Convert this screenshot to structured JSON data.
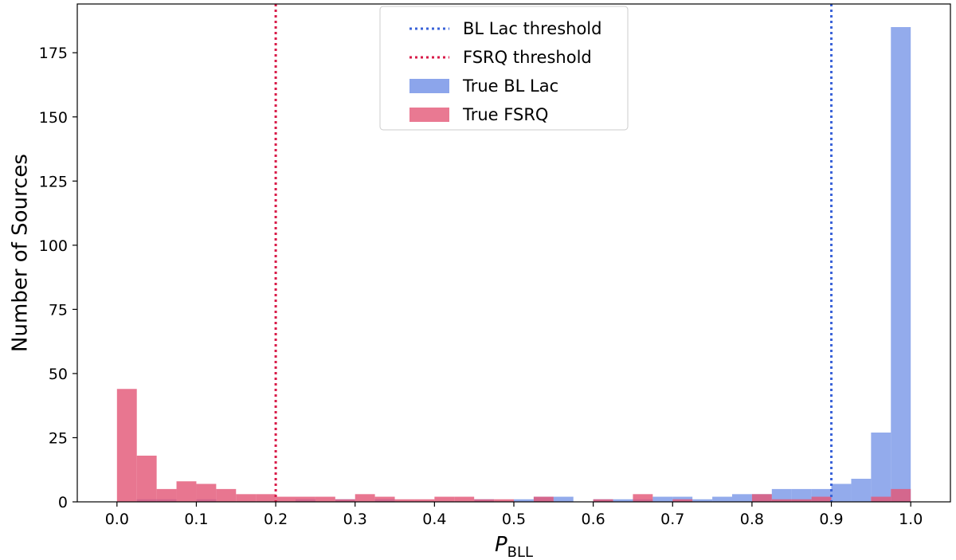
{
  "chart_data": {
    "type": "histogram",
    "xlabel_main": "P",
    "xlabel_sub": "BLL",
    "ylabel": "Number of Sources",
    "xlim": [
      -0.05,
      1.05
    ],
    "ylim": [
      0,
      194
    ],
    "xticks": [
      0.0,
      0.1,
      0.2,
      0.3,
      0.4,
      0.5,
      0.6,
      0.7,
      0.8,
      0.9,
      1.0
    ],
    "xtick_labels": [
      "0.0",
      "0.1",
      "0.2",
      "0.3",
      "0.4",
      "0.5",
      "0.6",
      "0.7",
      "0.8",
      "0.9",
      "1.0"
    ],
    "yticks": [
      0,
      25,
      50,
      75,
      100,
      125,
      150,
      175
    ],
    "ytick_labels": [
      "0",
      "25",
      "50",
      "75",
      "100",
      "125",
      "150",
      "175"
    ],
    "bin_width": 0.025,
    "series": [
      {
        "name": "True BL Lac",
        "color": "#6f8fe6",
        "opacity": 0.75,
        "bins": [
          {
            "x0": 0.025,
            "x1": 0.05,
            "count": 1
          },
          {
            "x0": 0.05,
            "x1": 0.075,
            "count": 1
          },
          {
            "x0": 0.1,
            "x1": 0.125,
            "count": 1
          },
          {
            "x0": 0.225,
            "x1": 0.25,
            "count": 1
          },
          {
            "x0": 0.275,
            "x1": 0.3,
            "count": 1
          },
          {
            "x0": 0.325,
            "x1": 0.35,
            "count": 1
          },
          {
            "x0": 0.45,
            "x1": 0.475,
            "count": 1
          },
          {
            "x0": 0.5,
            "x1": 0.525,
            "count": 1
          },
          {
            "x0": 0.525,
            "x1": 0.55,
            "count": 2
          },
          {
            "x0": 0.55,
            "x1": 0.575,
            "count": 2
          },
          {
            "x0": 0.6,
            "x1": 0.625,
            "count": 1
          },
          {
            "x0": 0.625,
            "x1": 0.65,
            "count": 1
          },
          {
            "x0": 0.65,
            "x1": 0.675,
            "count": 1
          },
          {
            "x0": 0.675,
            "x1": 0.7,
            "count": 2
          },
          {
            "x0": 0.7,
            "x1": 0.725,
            "count": 2
          },
          {
            "x0": 0.725,
            "x1": 0.75,
            "count": 1
          },
          {
            "x0": 0.75,
            "x1": 0.775,
            "count": 2
          },
          {
            "x0": 0.775,
            "x1": 0.8,
            "count": 3
          },
          {
            "x0": 0.8,
            "x1": 0.825,
            "count": 3
          },
          {
            "x0": 0.825,
            "x1": 0.85,
            "count": 5
          },
          {
            "x0": 0.85,
            "x1": 0.875,
            "count": 5
          },
          {
            "x0": 0.875,
            "x1": 0.9,
            "count": 5
          },
          {
            "x0": 0.9,
            "x1": 0.925,
            "count": 7
          },
          {
            "x0": 0.925,
            "x1": 0.95,
            "count": 9
          },
          {
            "x0": 0.95,
            "x1": 0.975,
            "count": 27
          },
          {
            "x0": 0.975,
            "x1": 1.0,
            "count": 185
          }
        ]
      },
      {
        "name": "True FSRQ",
        "color": "#e35877",
        "opacity": 0.82,
        "bins": [
          {
            "x0": 0.0,
            "x1": 0.025,
            "count": 44
          },
          {
            "x0": 0.025,
            "x1": 0.05,
            "count": 18
          },
          {
            "x0": 0.05,
            "x1": 0.075,
            "count": 5
          },
          {
            "x0": 0.075,
            "x1": 0.1,
            "count": 8
          },
          {
            "x0": 0.1,
            "x1": 0.125,
            "count": 7
          },
          {
            "x0": 0.125,
            "x1": 0.15,
            "count": 5
          },
          {
            "x0": 0.15,
            "x1": 0.175,
            "count": 3
          },
          {
            "x0": 0.175,
            "x1": 0.2,
            "count": 3
          },
          {
            "x0": 0.2,
            "x1": 0.225,
            "count": 2
          },
          {
            "x0": 0.225,
            "x1": 0.25,
            "count": 2
          },
          {
            "x0": 0.25,
            "x1": 0.275,
            "count": 2
          },
          {
            "x0": 0.275,
            "x1": 0.3,
            "count": 1
          },
          {
            "x0": 0.3,
            "x1": 0.325,
            "count": 3
          },
          {
            "x0": 0.325,
            "x1": 0.35,
            "count": 2
          },
          {
            "x0": 0.35,
            "x1": 0.375,
            "count": 1
          },
          {
            "x0": 0.375,
            "x1": 0.4,
            "count": 1
          },
          {
            "x0": 0.4,
            "x1": 0.425,
            "count": 2
          },
          {
            "x0": 0.425,
            "x1": 0.45,
            "count": 2
          },
          {
            "x0": 0.45,
            "x1": 0.475,
            "count": 1
          },
          {
            "x0": 0.475,
            "x1": 0.5,
            "count": 1
          },
          {
            "x0": 0.525,
            "x1": 0.55,
            "count": 2
          },
          {
            "x0": 0.6,
            "x1": 0.625,
            "count": 1
          },
          {
            "x0": 0.65,
            "x1": 0.675,
            "count": 3
          },
          {
            "x0": 0.7,
            "x1": 0.725,
            "count": 1
          },
          {
            "x0": 0.8,
            "x1": 0.825,
            "count": 3
          },
          {
            "x0": 0.825,
            "x1": 0.85,
            "count": 1
          },
          {
            "x0": 0.85,
            "x1": 0.875,
            "count": 1
          },
          {
            "x0": 0.875,
            "x1": 0.9,
            "count": 2
          },
          {
            "x0": 0.95,
            "x1": 0.975,
            "count": 2
          },
          {
            "x0": 0.975,
            "x1": 1.0,
            "count": 5
          }
        ]
      }
    ],
    "thresholds": [
      {
        "name": "BL Lac threshold",
        "x": 0.9,
        "color": "#3b63d9",
        "style": "dotted"
      },
      {
        "name": "FSRQ threshold",
        "x": 0.2,
        "color": "#d81b48",
        "style": "dotted"
      }
    ],
    "legend": {
      "position": "upper-center",
      "entries": [
        {
          "label": "BL Lac threshold",
          "kind": "dotted-line",
          "color": "#3b63d9"
        },
        {
          "label": "FSRQ threshold",
          "kind": "dotted-line",
          "color": "#d81b48"
        },
        {
          "label": "True BL Lac",
          "kind": "patch",
          "color": "#6f8fe6"
        },
        {
          "label": "True FSRQ",
          "kind": "patch",
          "color": "#e35877"
        }
      ]
    },
    "grid": false
  }
}
